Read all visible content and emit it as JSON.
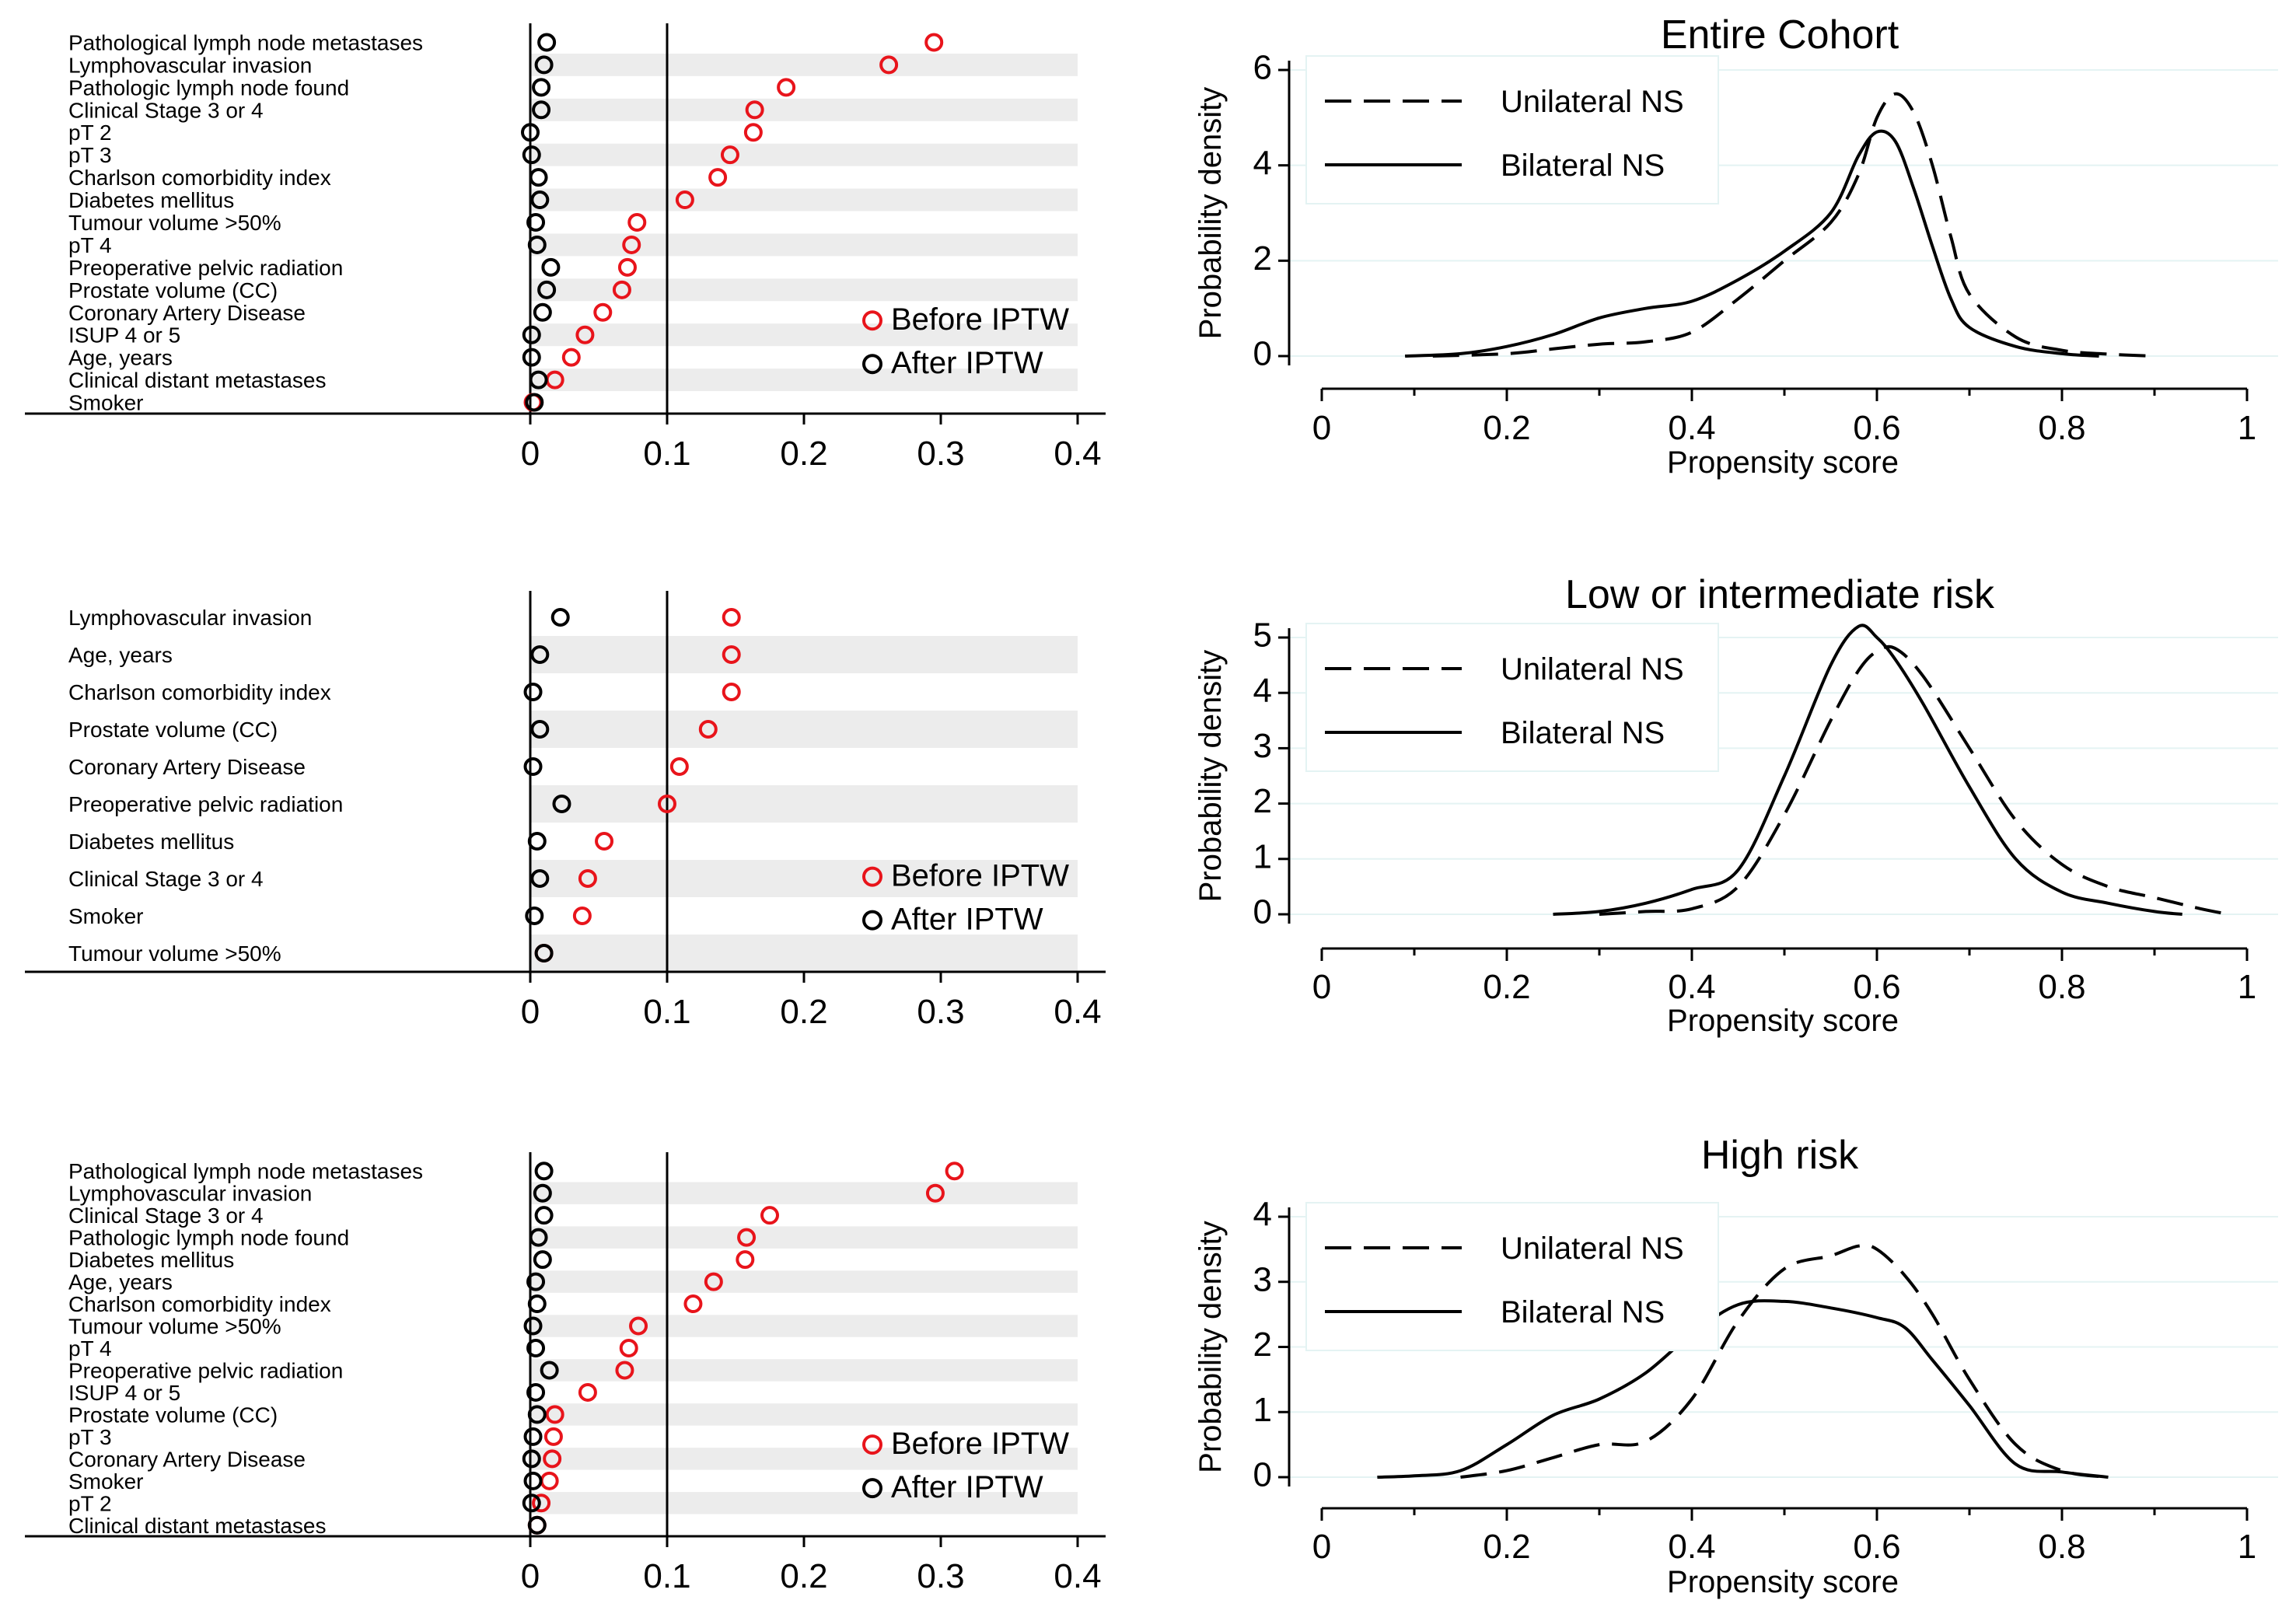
{
  "chart_data": [
    {
      "type": "scatter",
      "panel": "left-top",
      "xlim": [
        0,
        0.4
      ],
      "x_ticks": [
        "0",
        "0.1",
        "0.2",
        "0.3",
        "0.4"
      ],
      "reference_line": 0.1,
      "legend": {
        "before": "Before IPTW",
        "after": "After IPTW",
        "placement": "bottom-right"
      },
      "colors": {
        "before": "#e8141b",
        "after": "#000000",
        "band": "#ececec"
      },
      "categories": [
        "Pathological lymph node metastases",
        "Lymphovascular invasion",
        "Pathologic lymph node found",
        "Clinical Stage 3 or 4",
        "pT 2",
        "pT 3",
        "Charlson comorbidity index",
        "Diabetes mellitus",
        "Tumour volume >50%",
        "pT 4",
        "Preoperative pelvic radiation",
        "Prostate volume (CC)",
        "Coronary Artery Disease",
        "ISUP 4 or 5",
        "Age, years",
        "Clinical distant metastases",
        "Smoker"
      ],
      "series": [
        {
          "name": "Before IPTW",
          "values": [
            0.295,
            0.262,
            0.187,
            0.164,
            0.163,
            0.146,
            0.137,
            0.113,
            0.078,
            0.074,
            0.071,
            0.067,
            0.053,
            0.04,
            0.03,
            0.018,
            0.002
          ]
        },
        {
          "name": "After IPTW",
          "values": [
            0.012,
            0.01,
            0.008,
            0.008,
            0.0,
            0.001,
            0.006,
            0.007,
            0.004,
            0.005,
            0.015,
            0.012,
            0.009,
            0.001,
            0.001,
            0.006,
            0.003
          ]
        }
      ]
    },
    {
      "type": "line",
      "panel": "right-top",
      "title": "Entire Cohort",
      "xlabel": "Propensity score",
      "ylabel": "Probability density",
      "xlim": [
        0,
        1
      ],
      "ylim": [
        0,
        6
      ],
      "x_ticks": [
        "0",
        "0.2",
        "0.4",
        "0.6",
        "0.8",
        "1"
      ],
      "y_ticks": [
        "0",
        "2",
        "4",
        "6"
      ],
      "legend_placement": "top-left",
      "series": [
        {
          "name": "Unilateral NS",
          "style": "dashed",
          "x": [
            0.12,
            0.2,
            0.25,
            0.3,
            0.35,
            0.4,
            0.45,
            0.5,
            0.55,
            0.58,
            0.6,
            0.62,
            0.64,
            0.66,
            0.68,
            0.7,
            0.75,
            0.8,
            0.85,
            0.9
          ],
          "y": [
            0,
            0.05,
            0.15,
            0.25,
            0.3,
            0.5,
            1.2,
            2,
            2.8,
            3.8,
            5,
            5.5,
            5.1,
            4,
            2.5,
            1.3,
            0.4,
            0.12,
            0.04,
            0
          ]
        },
        {
          "name": "Bilateral NS",
          "style": "solid",
          "x": [
            0.09,
            0.15,
            0.2,
            0.25,
            0.3,
            0.35,
            0.4,
            0.45,
            0.5,
            0.55,
            0.58,
            0.6,
            0.62,
            0.64,
            0.66,
            0.68,
            0.7,
            0.75,
            0.8,
            0.84
          ],
          "y": [
            0,
            0.05,
            0.2,
            0.45,
            0.8,
            1,
            1.15,
            1.6,
            2.2,
            3,
            4.2,
            4.7,
            4.5,
            3.5,
            2.3,
            1.2,
            0.6,
            0.2,
            0.05,
            0
          ]
        }
      ]
    },
    {
      "type": "scatter",
      "panel": "left-middle",
      "xlim": [
        0,
        0.4
      ],
      "x_ticks": [
        "0",
        "0.1",
        "0.2",
        "0.3",
        "0.4"
      ],
      "reference_line": 0.1,
      "legend": {
        "before": "Before IPTW",
        "after": "After IPTW",
        "placement": "bottom-right"
      },
      "colors": {
        "before": "#e8141b",
        "after": "#000000",
        "band": "#ececec"
      },
      "categories": [
        "Lymphovascular invasion",
        "Age, years",
        "Charlson comorbidity index",
        "Prostate volume (CC)",
        "Coronary Artery Disease",
        "Preoperative pelvic radiation",
        "Diabetes mellitus",
        "Clinical Stage 3 or 4",
        "Smoker",
        "Tumour volume >50%"
      ],
      "series": [
        {
          "name": "Before IPTW",
          "values": [
            0.147,
            0.147,
            0.147,
            0.13,
            0.109,
            0.1,
            0.054,
            0.042,
            0.038,
            0.01
          ]
        },
        {
          "name": "After IPTW",
          "values": [
            0.022,
            0.007,
            0.002,
            0.007,
            0.002,
            0.023,
            0.005,
            0.007,
            0.003,
            0.01
          ]
        }
      ]
    },
    {
      "type": "line",
      "panel": "right-middle",
      "title": "Low or intermediate risk",
      "xlabel": "Propensity score",
      "ylabel": "Probability density",
      "xlim": [
        0,
        1
      ],
      "ylim": [
        0,
        5
      ],
      "x_ticks": [
        "0",
        "0.2",
        "0.4",
        "0.6",
        "0.8",
        "1"
      ],
      "y_ticks": [
        "0",
        "1",
        "2",
        "3",
        "4",
        "5"
      ],
      "legend_placement": "top-left",
      "series": [
        {
          "name": "Unilateral NS",
          "style": "dashed",
          "x": [
            0.3,
            0.35,
            0.4,
            0.45,
            0.5,
            0.55,
            0.58,
            0.6,
            0.62,
            0.65,
            0.7,
            0.75,
            0.8,
            0.85,
            0.9,
            0.95,
            0.98
          ],
          "y": [
            0,
            0.05,
            0.1,
            0.5,
            1.8,
            3.5,
            4.4,
            4.75,
            4.8,
            4.3,
            3,
            1.7,
            0.9,
            0.5,
            0.3,
            0.1,
            0
          ]
        },
        {
          "name": "Bilateral NS",
          "style": "solid",
          "x": [
            0.25,
            0.3,
            0.35,
            0.4,
            0.45,
            0.5,
            0.55,
            0.58,
            0.6,
            0.62,
            0.65,
            0.7,
            0.75,
            0.8,
            0.85,
            0.9,
            0.93
          ],
          "y": [
            0,
            0.05,
            0.2,
            0.45,
            0.8,
            2.5,
            4.5,
            5.2,
            5,
            4.6,
            3.8,
            2.3,
            1,
            0.4,
            0.2,
            0.05,
            0
          ]
        }
      ]
    },
    {
      "type": "scatter",
      "panel": "left-bottom",
      "xlim": [
        0,
        0.4
      ],
      "x_ticks": [
        "0",
        "0.1",
        "0.2",
        "0.3",
        "0.4"
      ],
      "reference_line": 0.1,
      "legend": {
        "before": "Before IPTW",
        "after": "After IPTW",
        "placement": "bottom-right"
      },
      "colors": {
        "before": "#e8141b",
        "after": "#000000",
        "band": "#ececec"
      },
      "categories": [
        "Pathological lymph node metastases",
        "Lymphovascular invasion",
        "Clinical Stage 3 or 4",
        "Pathologic lymph node found",
        "Diabetes mellitus",
        "Age, years",
        "Charlson comorbidity index",
        "Tumour volume >50%",
        "pT 4",
        "Preoperative pelvic radiation",
        "ISUP 4 or 5",
        "Prostate volume (CC)",
        "pT 3",
        "Coronary Artery Disease",
        "Smoker",
        "pT 2",
        "Clinical distant metastases"
      ],
      "series": [
        {
          "name": "Before IPTW",
          "values": [
            0.31,
            0.296,
            0.175,
            0.158,
            0.157,
            0.134,
            0.119,
            0.079,
            0.072,
            0.069,
            0.042,
            0.018,
            0.017,
            0.016,
            0.014,
            0.008,
            0.005
          ]
        },
        {
          "name": "After IPTW",
          "values": [
            0.01,
            0.009,
            0.01,
            0.006,
            0.009,
            0.004,
            0.005,
            0.002,
            0.004,
            0.014,
            0.004,
            0.005,
            0.002,
            0.001,
            0.002,
            0.001,
            0.005
          ]
        }
      ]
    },
    {
      "type": "line",
      "panel": "right-bottom",
      "title": "High risk",
      "xlabel": "Propensity score",
      "ylabel": "Probability density",
      "xlim": [
        0,
        1
      ],
      "ylim": [
        0,
        4
      ],
      "x_ticks": [
        "0",
        "0.2",
        "0.4",
        "0.6",
        "0.8",
        "1"
      ],
      "y_ticks": [
        "0",
        "1",
        "2",
        "3",
        "4"
      ],
      "legend_placement": "top-left",
      "series": [
        {
          "name": "Unilateral NS",
          "style": "dashed",
          "x": [
            0.15,
            0.2,
            0.25,
            0.3,
            0.35,
            0.4,
            0.45,
            0.5,
            0.55,
            0.58,
            0.6,
            0.63,
            0.66,
            0.7,
            0.75,
            0.8,
            0.85
          ],
          "y": [
            0,
            0.1,
            0.3,
            0.5,
            0.55,
            1.2,
            2.4,
            3.2,
            3.4,
            3.55,
            3.5,
            3.1,
            2.5,
            1.5,
            0.5,
            0.1,
            0
          ]
        },
        {
          "name": "Bilateral NS",
          "style": "solid",
          "x": [
            0.06,
            0.1,
            0.15,
            0.2,
            0.25,
            0.3,
            0.35,
            0.4,
            0.45,
            0.5,
            0.55,
            0.6,
            0.63,
            0.66,
            0.7,
            0.75,
            0.8,
            0.85
          ],
          "y": [
            0,
            0.02,
            0.1,
            0.5,
            0.95,
            1.2,
            1.6,
            2.2,
            2.65,
            2.7,
            2.6,
            2.45,
            2.3,
            1.8,
            1.1,
            0.2,
            0.08,
            0
          ]
        }
      ]
    }
  ],
  "legend": {
    "unilateral": "Unilateral NS",
    "bilateral": "Bilateral NS"
  }
}
